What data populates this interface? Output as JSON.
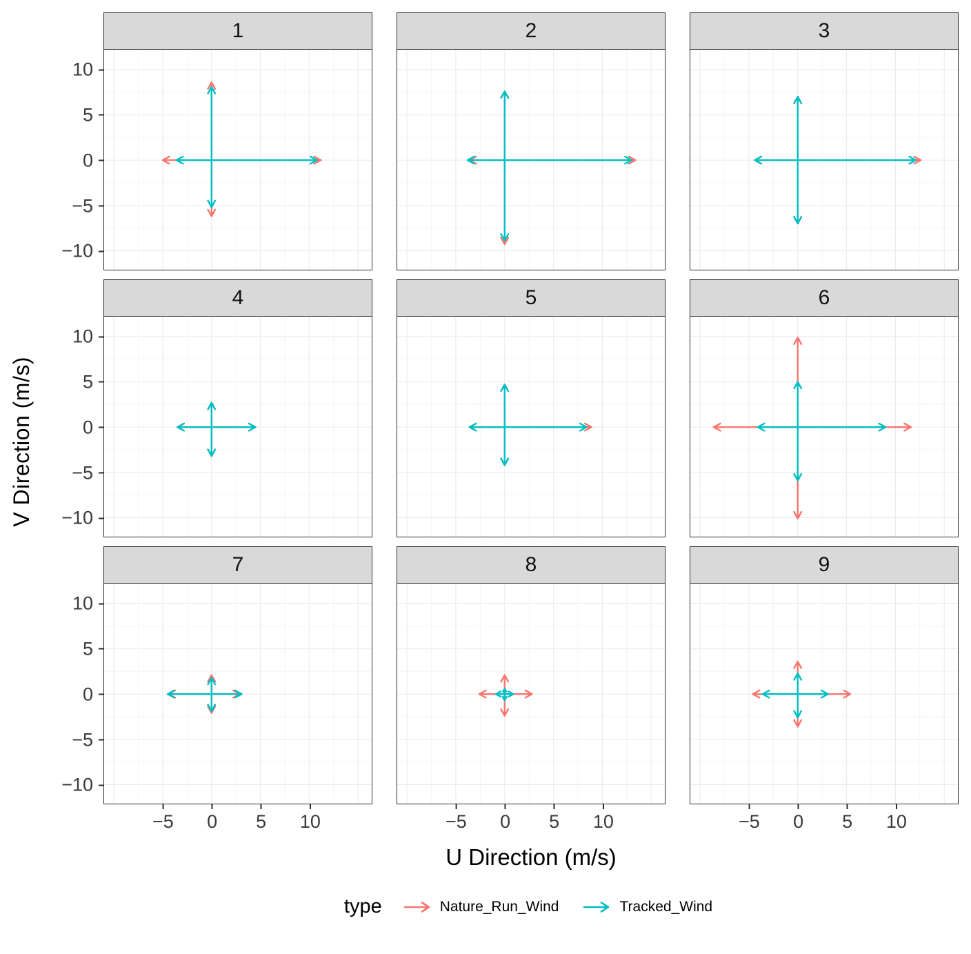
{
  "axes": {
    "x_label": "U Direction (m/s)",
    "y_label": "V Direction (m/s)",
    "x_domain": [
      -11,
      16.4
    ],
    "y_domain": [
      -12.1,
      12.2
    ],
    "x_ticks": [
      {
        "v": -5,
        "label": "−5"
      },
      {
        "v": 0,
        "label": "0"
      },
      {
        "v": 5,
        "label": "5"
      },
      {
        "v": 10,
        "label": "10"
      }
    ],
    "y_ticks": [
      {
        "v": -10,
        "label": "−10"
      },
      {
        "v": -5,
        "label": "−5"
      },
      {
        "v": 0,
        "label": "0"
      },
      {
        "v": 5,
        "label": "5"
      },
      {
        "v": 10,
        "label": "10"
      }
    ]
  },
  "legend": {
    "title": "type",
    "items": [
      {
        "label": "Nature_Run_Wind",
        "color": "#F8766D"
      },
      {
        "label": "Tracked_Wind",
        "color": "#00BFC4"
      }
    ]
  },
  "chart_data": {
    "type": "quiver",
    "description": "Faceted wind-vector cross plots; arrows start at origin (0,0) and extend to [u,v] in m/s",
    "facet_labels": [
      "1",
      "2",
      "3",
      "4",
      "5",
      "6",
      "7",
      "8",
      "9"
    ],
    "xlabel": "U Direction (m/s)",
    "ylabel": "V Direction (m/s)",
    "grid": {
      "major_x": [
        -10,
        -5,
        0,
        5,
        10,
        15
      ],
      "major_y": [
        -10,
        -5,
        0,
        5,
        10
      ],
      "minor_x": [
        -7.5,
        -2.5,
        2.5,
        7.5,
        12.5
      ],
      "minor_y": [
        -7.5,
        -2.5,
        2.5,
        7.5
      ],
      "major_color": "#ececec",
      "minor_color": "#f5f5f5"
    },
    "facets": [
      {
        "label": "1",
        "series": [
          {
            "name": "Nature_Run_Wind",
            "color": "#F8766D",
            "arrows": [
              [
                -5.0,
                0
              ],
              [
                11.2,
                0
              ],
              [
                0,
                8.6
              ],
              [
                0,
                -6.2
              ]
            ]
          },
          {
            "name": "Tracked_Wind",
            "color": "#00BFC4",
            "arrows": [
              [
                -3.6,
                0
              ],
              [
                10.8,
                0
              ],
              [
                0,
                8.1
              ],
              [
                0,
                -5.2
              ]
            ]
          }
        ]
      },
      {
        "label": "2",
        "series": [
          {
            "name": "Nature_Run_Wind",
            "color": "#F8766D",
            "arrows": [
              [
                -3.6,
                0
              ],
              [
                13.4,
                0
              ],
              [
                0,
                7.6
              ],
              [
                0,
                -9.3
              ]
            ]
          },
          {
            "name": "Tracked_Wind",
            "color": "#00BFC4",
            "arrows": [
              [
                -3.8,
                0
              ],
              [
                13.0,
                0
              ],
              [
                0,
                7.6
              ],
              [
                0,
                -8.9
              ]
            ]
          }
        ]
      },
      {
        "label": "3",
        "series": [
          {
            "name": "Nature_Run_Wind",
            "color": "#F8766D",
            "arrows": [
              [
                -4.4,
                0
              ],
              [
                12.6,
                0
              ],
              [
                0,
                7.0
              ],
              [
                0,
                -7.0
              ]
            ]
          },
          {
            "name": "Tracked_Wind",
            "color": "#00BFC4",
            "arrows": [
              [
                -4.4,
                0
              ],
              [
                12.1,
                0
              ],
              [
                0,
                7.0
              ],
              [
                0,
                -7.0
              ]
            ]
          }
        ]
      },
      {
        "label": "4",
        "series": [
          {
            "name": "Nature_Run_Wind",
            "color": "#F8766D",
            "arrows": [
              [
                -3.5,
                0
              ],
              [
                4.5,
                0
              ],
              [
                0,
                2.7
              ],
              [
                0,
                -3.2
              ]
            ]
          },
          {
            "name": "Tracked_Wind",
            "color": "#00BFC4",
            "arrows": [
              [
                -3.5,
                0
              ],
              [
                4.5,
                0
              ],
              [
                0,
                2.7
              ],
              [
                0,
                -3.2
              ]
            ]
          }
        ]
      },
      {
        "label": "5",
        "series": [
          {
            "name": "Nature_Run_Wind",
            "color": "#F8766D",
            "arrows": [
              [
                -3.6,
                0
              ],
              [
                8.9,
                0
              ],
              [
                0,
                4.7
              ],
              [
                0,
                -4.2
              ]
            ]
          },
          {
            "name": "Tracked_Wind",
            "color": "#00BFC4",
            "arrows": [
              [
                -3.6,
                0
              ],
              [
                8.4,
                0
              ],
              [
                0,
                4.7
              ],
              [
                0,
                -4.2
              ]
            ]
          }
        ]
      },
      {
        "label": "6",
        "series": [
          {
            "name": "Nature_Run_Wind",
            "color": "#F8766D",
            "arrows": [
              [
                -8.6,
                0
              ],
              [
                11.6,
                0
              ],
              [
                0,
                9.9
              ],
              [
                0,
                -10.1
              ]
            ]
          },
          {
            "name": "Tracked_Wind",
            "color": "#00BFC4",
            "arrows": [
              [
                -4.1,
                0
              ],
              [
                9.0,
                0
              ],
              [
                0,
                5.0
              ],
              [
                0,
                -5.9
              ]
            ]
          }
        ]
      },
      {
        "label": "7",
        "series": [
          {
            "name": "Nature_Run_Wind",
            "color": "#F8766D",
            "arrows": [
              [
                -4.4,
                0
              ],
              [
                2.9,
                0
              ],
              [
                0,
                2.1
              ],
              [
                0,
                -2.1
              ]
            ]
          },
          {
            "name": "Tracked_Wind",
            "color": "#00BFC4",
            "arrows": [
              [
                -4.5,
                0
              ],
              [
                3.1,
                0
              ],
              [
                0,
                1.8
              ],
              [
                0,
                -1.9
              ]
            ]
          }
        ]
      },
      {
        "label": "8",
        "series": [
          {
            "name": "Nature_Run_Wind",
            "color": "#F8766D",
            "arrows": [
              [
                -2.6,
                0
              ],
              [
                2.8,
                0
              ],
              [
                0,
                2.1
              ],
              [
                0,
                -2.4
              ]
            ]
          },
          {
            "name": "Tracked_Wind",
            "color": "#00BFC4",
            "arrows": [
              [
                -0.9,
                0
              ],
              [
                0.9,
                0
              ],
              [
                0,
                0.6
              ],
              [
                0,
                -0.7
              ]
            ]
          }
        ]
      },
      {
        "label": "9",
        "series": [
          {
            "name": "Nature_Run_Wind",
            "color": "#F8766D",
            "arrows": [
              [
                -4.6,
                0
              ],
              [
                5.4,
                0
              ],
              [
                0,
                3.6
              ],
              [
                0,
                -3.6
              ]
            ]
          },
          {
            "name": "Tracked_Wind",
            "color": "#00BFC4",
            "arrows": [
              [
                -3.6,
                0
              ],
              [
                3.1,
                0
              ],
              [
                0,
                2.3
              ],
              [
                0,
                -2.6
              ]
            ]
          }
        ]
      }
    ]
  }
}
